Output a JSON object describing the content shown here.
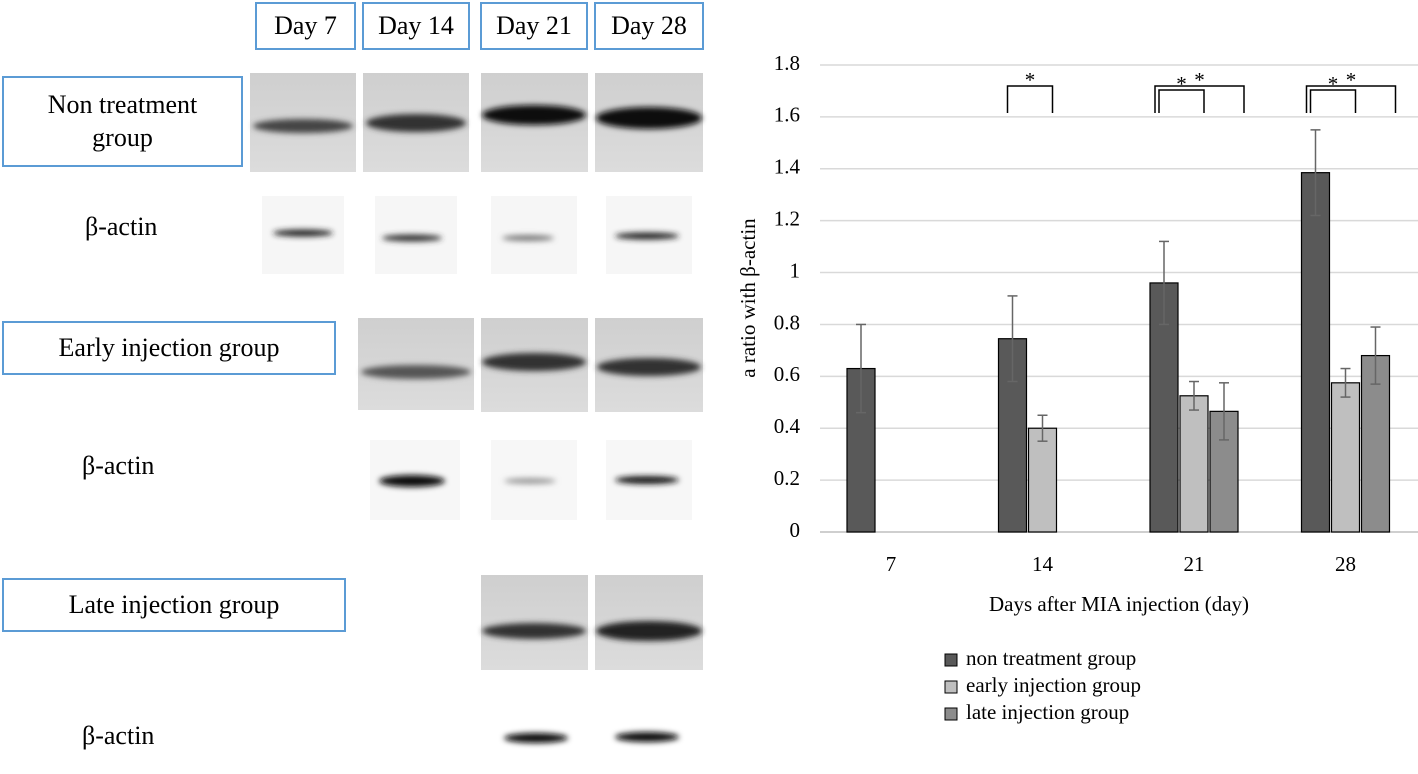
{
  "blot": {
    "days": [
      "Day 7",
      "Day 14",
      "Day 21",
      "Day 28"
    ],
    "groups": [
      {
        "label": "Non treatment group",
        "control": "β-actin"
      },
      {
        "label": "Early injection group",
        "control": "β-actin"
      },
      {
        "label": "Late injection group",
        "control": "β-actin"
      }
    ]
  },
  "chart_data": {
    "type": "bar",
    "x_label": "Days after MIA injection (day)",
    "y_label": "a ratio with β-actin",
    "categories": [
      "7",
      "14",
      "21",
      "28"
    ],
    "series": [
      {
        "name": "non treatment group",
        "color": "#595959",
        "values": [
          0.63,
          0.745,
          0.96,
          1.385
        ],
        "errors": [
          0.17,
          0.165,
          0.16,
          0.165
        ]
      },
      {
        "name": "early injection group",
        "color": "#bfbfbf",
        "values": [
          null,
          0.4,
          0.525,
          0.575
        ],
        "errors": [
          null,
          0.05,
          0.055,
          0.055
        ]
      },
      {
        "name": "late injection group",
        "color": "#8c8c8c",
        "values": [
          null,
          null,
          0.465,
          0.68
        ],
        "errors": [
          null,
          null,
          0.11,
          0.11
        ]
      }
    ],
    "ylim": [
      0,
      1.8
    ],
    "yticks": [
      0,
      0.2,
      0.4,
      0.6,
      0.8,
      1,
      1.2,
      1.4,
      1.6,
      1.8
    ],
    "grid": true,
    "legend": "bottom",
    "significance": [
      {
        "category": 1,
        "series": [
          0,
          1
        ],
        "label": "*"
      },
      {
        "category": 2,
        "series": [
          0,
          1
        ],
        "label": "*"
      },
      {
        "category": 2,
        "series": [
          0,
          2
        ],
        "label": "*"
      },
      {
        "category": 3,
        "series": [
          0,
          1
        ],
        "label": "*"
      },
      {
        "category": 3,
        "series": [
          0,
          2
        ],
        "label": "*"
      }
    ]
  }
}
